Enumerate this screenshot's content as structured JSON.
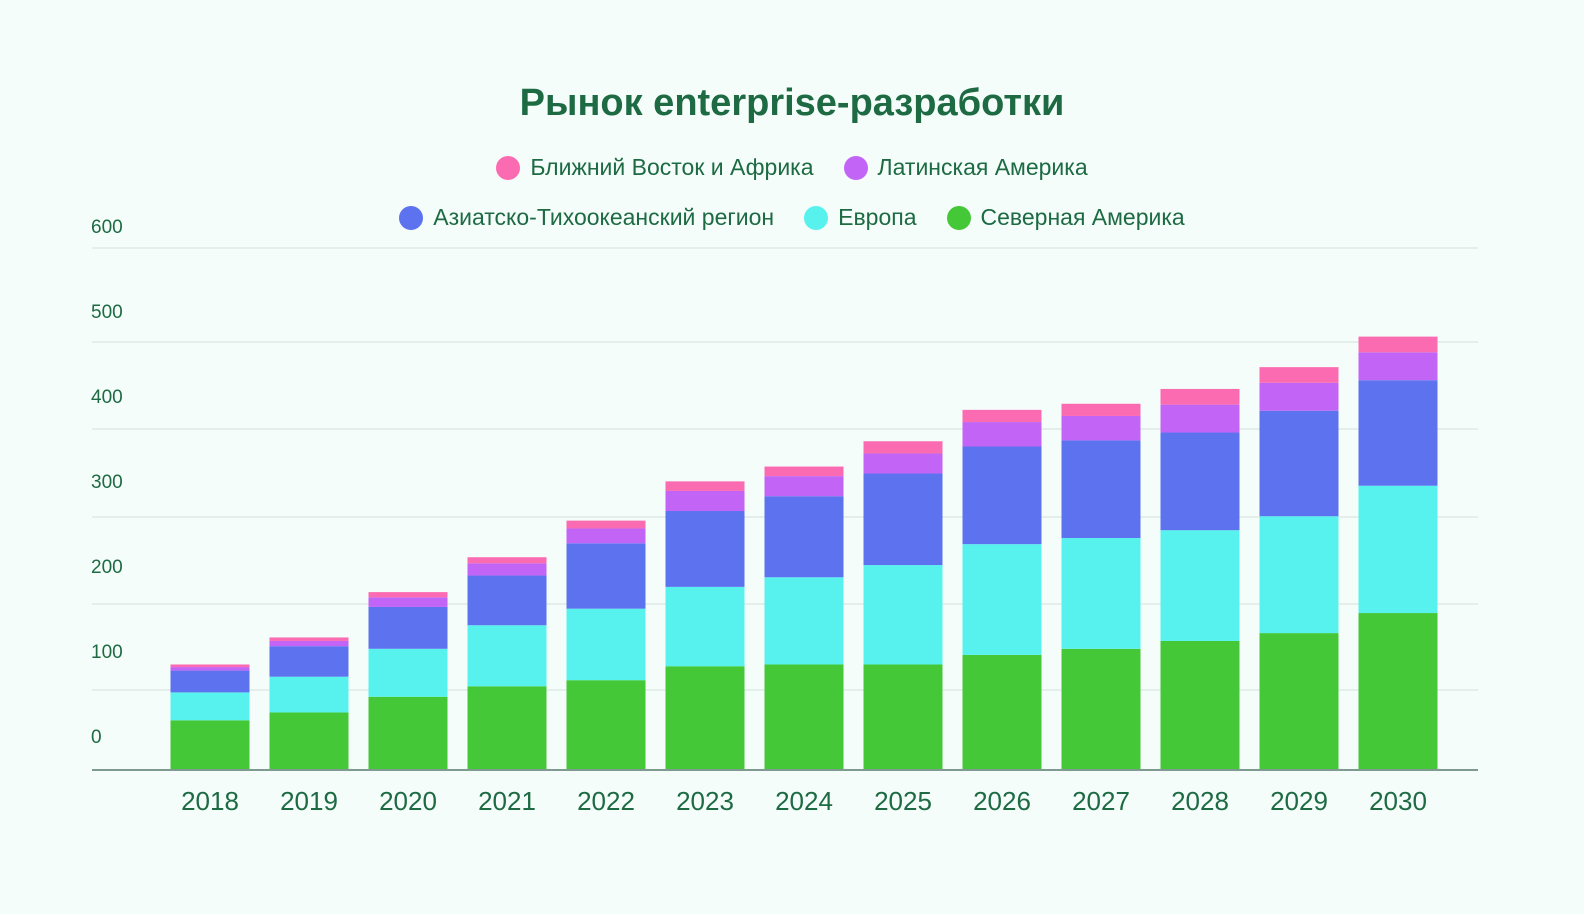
{
  "chart_data": {
    "type": "bar",
    "stacked": true,
    "title": "Рынок enterprise-разработки",
    "xlabel": "",
    "ylabel": "",
    "categories": [
      "2018",
      "2019",
      "2020",
      "2021",
      "2022",
      "2023",
      "2024",
      "2025",
      "2026",
      "2027",
      "2028",
      "2029",
      "2030"
    ],
    "ytick_labels": [
      "0",
      "100",
      "200",
      "300",
      "400",
      "500",
      "600"
    ],
    "ylim": [
      0,
      600
    ],
    "grid": true,
    "legend_position": "top",
    "series": [
      {
        "name": "Северная Америка",
        "color": "#45c837",
        "values": [
          57,
          66,
          84,
          96,
          103,
          119,
          121,
          121,
          132,
          139,
          148,
          157,
          180
        ]
      },
      {
        "name": "Европа",
        "color": "#57f2ee",
        "values": [
          32,
          41,
          55,
          70,
          82,
          91,
          100,
          114,
          127,
          127,
          127,
          134,
          146
        ]
      },
      {
        "name": "Азиатско-Тихоокеанский регион",
        "color": "#5c72ef",
        "values": [
          25,
          35,
          48,
          57,
          75,
          87,
          93,
          105,
          112,
          112,
          112,
          121,
          121
        ]
      },
      {
        "name": "Латинская Америка",
        "color": "#c264f5",
        "values": [
          4,
          6,
          11,
          14,
          17,
          23,
          23,
          23,
          28,
          28,
          32,
          32,
          32
        ]
      },
      {
        "name": "Ближний Восток и Африка",
        "color": "#fb6bb1",
        "values": [
          3,
          4,
          6,
          7,
          9,
          11,
          11,
          14,
          14,
          14,
          18,
          18,
          18
        ]
      }
    ]
  }
}
